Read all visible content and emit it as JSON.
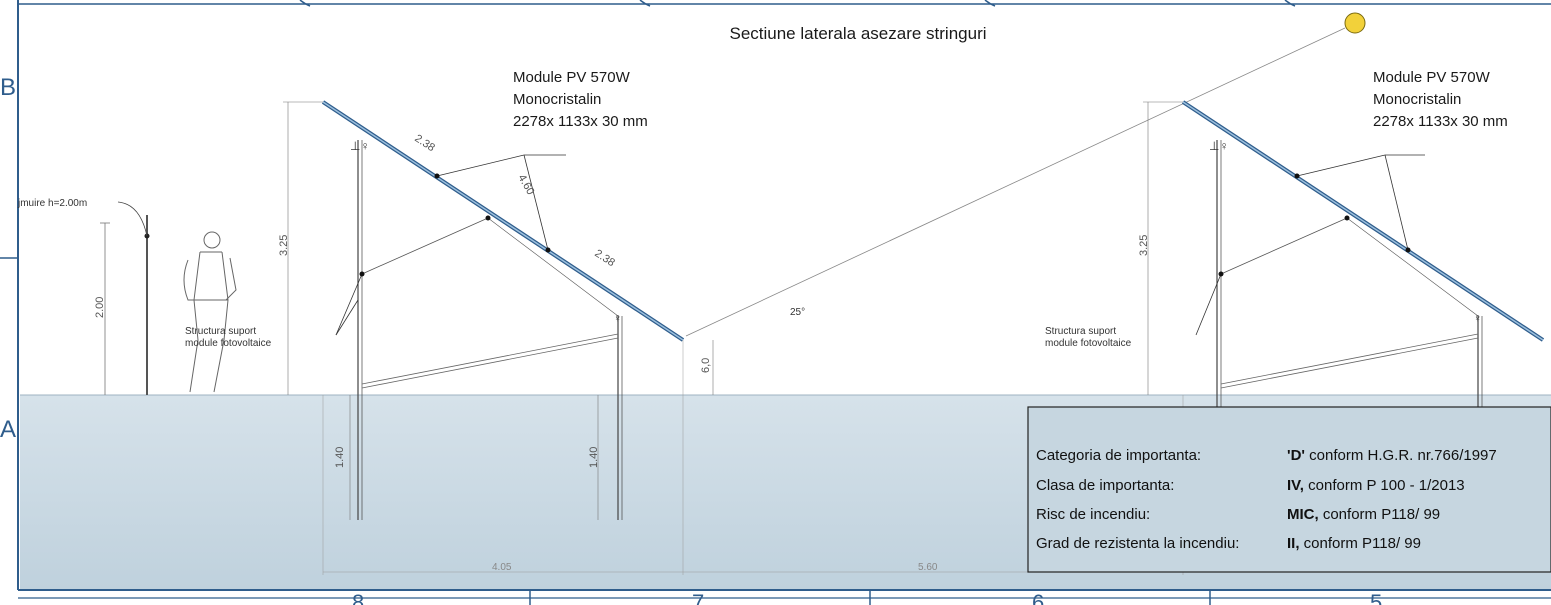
{
  "title": "Sectiune laterala asezare stringuri",
  "border_letters": {
    "b": "B",
    "a": "A"
  },
  "column_numbers": [
    "8",
    "7",
    "6",
    "5"
  ],
  "fence": {
    "label": "jmuire h=2.00m",
    "height": "2.00"
  },
  "module_left": {
    "line1": "Module PV 570W",
    "line2": "Monocristalin",
    "line3": "2278x 1133x 30 mm"
  },
  "module_right": {
    "line1": "Module PV 570W",
    "line2": "Monocristalin",
    "line3": "2278x 1133x 30 mm"
  },
  "structure_label": {
    "line1": "Structura suport",
    "line2": "module fotovoltaice"
  },
  "dims": {
    "panel_segment": "2.38",
    "panel_total": "4.60",
    "height": "3.25",
    "pile_depth": "1.40",
    "ground_clear": "6,0",
    "angle": "25°",
    "row_depth": "4.05",
    "row_spacing": "5.60"
  },
  "info_box": {
    "rows": [
      {
        "label": "Categoria de importanta:",
        "value_bold": "'D'",
        "value_rest": " conform H.G.R. nr.766/1997"
      },
      {
        "label": "Clasa de importanta:",
        "value_bold": "IV,",
        "value_rest": " conform  P 100 - 1/2013"
      },
      {
        "label": "Risc de incendiu:",
        "value_bold": "MIC,",
        "value_rest": " conform P118/ 99"
      },
      {
        "label": "Grad de rezistenta la incendiu:",
        "value_bold": "II,",
        "value_rest": " conform P118/ 99"
      }
    ]
  },
  "colors": {
    "ground": "#c9d8e2",
    "border": "#2f5d8c",
    "sun": "#f2d13a"
  }
}
